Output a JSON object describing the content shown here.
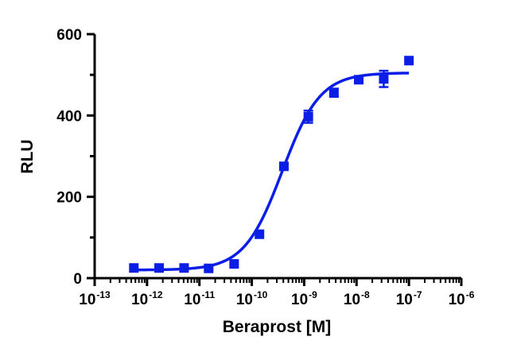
{
  "chart_data": {
    "type": "scatter",
    "xlabel": "Beraprost [M]",
    "ylabel": "RLU",
    "x_scale": "log",
    "xlim": [
      1e-13,
      1e-06
    ],
    "ylim": [
      0,
      600
    ],
    "x_ticks": [
      {
        "base": "10",
        "exp": "-13"
      },
      {
        "base": "10",
        "exp": "-12"
      },
      {
        "base": "10",
        "exp": "-11"
      },
      {
        "base": "10",
        "exp": "-10"
      },
      {
        "base": "10",
        "exp": "-9"
      },
      {
        "base": "10",
        "exp": "-8"
      },
      {
        "base": "10",
        "exp": "-7"
      },
      {
        "base": "10",
        "exp": "-6"
      }
    ],
    "y_ticks": [
      "0",
      "200",
      "400",
      "600"
    ],
    "color": "#0a1ee6",
    "grid": false,
    "series": [
      {
        "points": [
          {
            "x": 5.6e-13,
            "y": 25,
            "err": 2
          },
          {
            "x": 1.7e-12,
            "y": 25,
            "err": 2
          },
          {
            "x": 5.1e-12,
            "y": 25,
            "err": 2
          },
          {
            "x": 1.5e-11,
            "y": 24,
            "err": 2
          },
          {
            "x": 4.6e-11,
            "y": 35,
            "err": 3
          },
          {
            "x": 1.4e-10,
            "y": 108,
            "err": 4
          },
          {
            "x": 4.1e-10,
            "y": 275,
            "err": 5
          },
          {
            "x": 1.2e-09,
            "y": 397,
            "err": 15
          },
          {
            "x": 3.7e-09,
            "y": 456,
            "err": 10
          },
          {
            "x": 1.1e-08,
            "y": 488,
            "err": 5
          },
          {
            "x": 3.3e-08,
            "y": 490,
            "err": 20
          },
          {
            "x": 1e-07,
            "y": 535,
            "err": 3
          }
        ],
        "fit": {
          "model": "4PL",
          "bottom": 20,
          "top": 505,
          "log_ec50": -9.42,
          "hill": 1.2
        }
      }
    ]
  }
}
